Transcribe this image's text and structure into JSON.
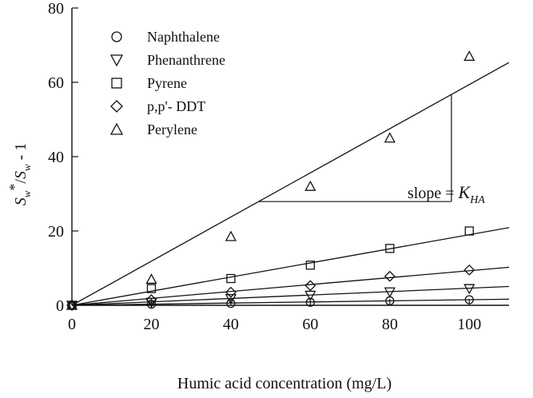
{
  "chart_data": {
    "type": "scatter",
    "xlabel": "Humic acid concentration (mg/L)",
    "ylabel": "S_w*/S_w - 1",
    "xlim": [
      0,
      110
    ],
    "ylim": [
      0,
      80
    ],
    "xticks": [
      0,
      20,
      40,
      60,
      80,
      100
    ],
    "yticks": [
      0,
      20,
      40,
      60,
      80
    ],
    "legend_position": "top-left",
    "grid": false,
    "series": [
      {
        "name": "Naphthalene",
        "marker": "circle",
        "x": [
          0,
          20,
          40,
          60,
          80,
          100
        ],
        "y": [
          0,
          0.3,
          0.5,
          0.8,
          1.2,
          1.5
        ],
        "fit_slope": 0.015
      },
      {
        "name": "Phenanthrene",
        "marker": "triangle-down",
        "x": [
          0,
          20,
          40,
          60,
          80,
          100
        ],
        "y": [
          0,
          0.8,
          1.8,
          2.7,
          3.6,
          4.5
        ],
        "fit_slope": 0.046
      },
      {
        "name": "Pyrene",
        "marker": "square",
        "x": [
          0,
          20,
          40,
          60,
          80,
          100
        ],
        "y": [
          0,
          4.5,
          7.2,
          10.8,
          15.3,
          20
        ],
        "fit_slope": 0.19
      },
      {
        "name": "p,p'- DDT",
        "marker": "diamond",
        "x": [
          0,
          20,
          40,
          60,
          80,
          100
        ],
        "y": [
          0,
          1.5,
          3.5,
          5.3,
          7.8,
          9.5
        ],
        "fit_slope": 0.093
      },
      {
        "name": "Perylene",
        "marker": "triangle-up",
        "x": [
          0,
          20,
          40,
          60,
          80,
          100
        ],
        "y": [
          0,
          7,
          18.5,
          32,
          45,
          67
        ],
        "fit_slope": 0.594
      }
    ],
    "annotation": {
      "text": "slope = ",
      "symbol": "K",
      "subscript": "HA"
    }
  }
}
